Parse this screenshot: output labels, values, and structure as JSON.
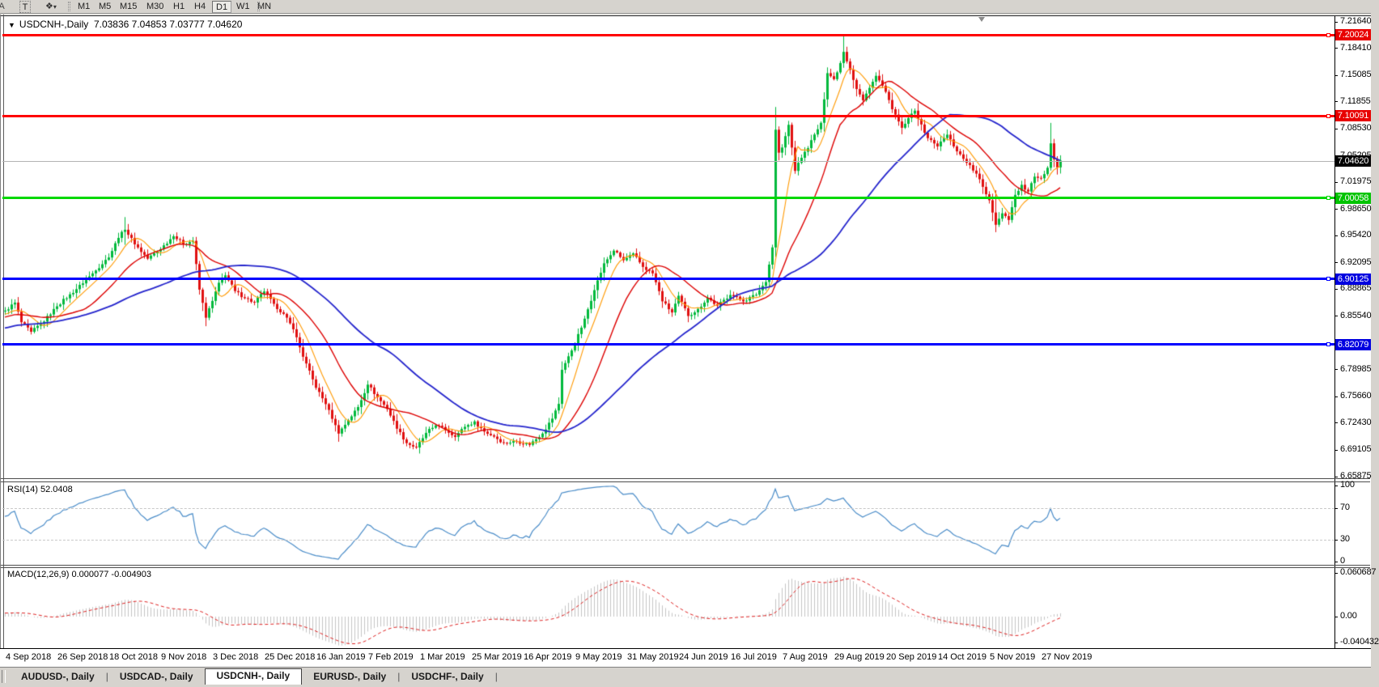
{
  "toolbar": {
    "cropped_icon": "A",
    "text_tool": "T",
    "arrows_tool": "❖",
    "dropdown_caret": "▾",
    "timeframes": [
      "M1",
      "M5",
      "M15",
      "M30",
      "H1",
      "H4",
      "D1",
      "W1",
      "MN"
    ],
    "active_timeframe": "D1"
  },
  "chart": {
    "collapse_triangle": "▼",
    "title": "USDCNH-,Daily",
    "quotes": "7.03836 7.04853 7.03777 7.04620"
  },
  "chart_data": {
    "type": "candlestick",
    "symbol": "USDCNH-",
    "timeframe": "Daily",
    "current_bar": {
      "open": 7.03836,
      "high": 7.04853,
      "low": 7.03777,
      "close": 7.0462
    },
    "price_range": {
      "max": 7.2164,
      "min": 6.65875
    },
    "bars": 327,
    "bull_color": "#00b93c",
    "bear_color": "#e01010",
    "close_keyframes": [
      [
        0,
        6.862
      ],
      [
        3,
        6.872
      ],
      [
        5,
        6.848
      ],
      [
        8,
        6.836
      ],
      [
        11,
        6.846
      ],
      [
        14,
        6.858
      ],
      [
        16,
        6.868
      ],
      [
        20,
        6.882
      ],
      [
        24,
        6.896
      ],
      [
        28,
        6.912
      ],
      [
        32,
        6.928
      ],
      [
        35,
        6.952
      ],
      [
        37,
        6.962
      ],
      [
        40,
        6.944
      ],
      [
        44,
        6.926
      ],
      [
        48,
        6.938
      ],
      [
        52,
        6.954
      ],
      [
        55,
        6.944
      ],
      [
        58,
        6.948
      ],
      [
        60,
        6.888
      ],
      [
        62,
        6.854
      ],
      [
        64,
        6.874
      ],
      [
        66,
        6.896
      ],
      [
        68,
        6.906
      ],
      [
        71,
        6.886
      ],
      [
        74,
        6.878
      ],
      [
        77,
        6.872
      ],
      [
        80,
        6.886
      ],
      [
        83,
        6.87
      ],
      [
        86,
        6.858
      ],
      [
        89,
        6.84
      ],
      [
        92,
        6.806
      ],
      [
        96,
        6.768
      ],
      [
        99,
        6.748
      ],
      [
        101,
        6.73
      ],
      [
        103,
        6.712
      ],
      [
        106,
        6.728
      ],
      [
        109,
        6.744
      ],
      [
        112,
        6.772
      ],
      [
        115,
        6.756
      ],
      [
        118,
        6.742
      ],
      [
        121,
        6.718
      ],
      [
        124,
        6.7
      ],
      [
        127,
        6.694
      ],
      [
        130,
        6.712
      ],
      [
        133,
        6.722
      ],
      [
        136,
        6.716
      ],
      [
        139,
        6.708
      ],
      [
        142,
        6.72
      ],
      [
        145,
        6.726
      ],
      [
        148,
        6.714
      ],
      [
        151,
        6.708
      ],
      [
        154,
        6.7
      ],
      [
        158,
        6.702
      ],
      [
        162,
        6.698
      ],
      [
        166,
        6.712
      ],
      [
        169,
        6.73
      ],
      [
        171,
        6.748
      ],
      [
        172,
        6.79
      ],
      [
        174,
        6.806
      ],
      [
        176,
        6.822
      ],
      [
        179,
        6.852
      ],
      [
        182,
        6.888
      ],
      [
        185,
        6.92
      ],
      [
        188,
        6.936
      ],
      [
        191,
        6.924
      ],
      [
        194,
        6.932
      ],
      [
        197,
        6.916
      ],
      [
        200,
        6.908
      ],
      [
        203,
        6.874
      ],
      [
        206,
        6.86
      ],
      [
        208,
        6.88
      ],
      [
        211,
        6.856
      ],
      [
        214,
        6.864
      ],
      [
        217,
        6.878
      ],
      [
        220,
        6.868
      ],
      [
        224,
        6.882
      ],
      [
        228,
        6.874
      ],
      [
        232,
        6.882
      ],
      [
        235,
        6.898
      ],
      [
        237,
        6.94
      ],
      [
        238,
        7.084
      ],
      [
        239,
        7.056
      ],
      [
        240,
        7.062
      ],
      [
        242,
        7.09
      ],
      [
        244,
        7.034
      ],
      [
        246,
        7.05
      ],
      [
        248,
        7.062
      ],
      [
        250,
        7.078
      ],
      [
        252,
        7.092
      ],
      [
        254,
        7.154
      ],
      [
        256,
        7.146
      ],
      [
        258,
        7.166
      ],
      [
        259,
        7.18
      ],
      [
        261,
        7.158
      ],
      [
        263,
        7.134
      ],
      [
        265,
        7.12
      ],
      [
        267,
        7.136
      ],
      [
        269,
        7.15
      ],
      [
        271,
        7.138
      ],
      [
        273,
        7.12
      ],
      [
        275,
        7.102
      ],
      [
        277,
        7.086
      ],
      [
        279,
        7.098
      ],
      [
        281,
        7.108
      ],
      [
        283,
        7.09
      ],
      [
        285,
        7.074
      ],
      [
        288,
        7.064
      ],
      [
        291,
        7.078
      ],
      [
        294,
        7.058
      ],
      [
        297,
        7.044
      ],
      [
        300,
        7.03
      ],
      [
        302,
        7.014
      ],
      [
        304,
        6.998
      ],
      [
        306,
        6.968
      ],
      [
        308,
        6.982
      ],
      [
        310,
        6.974
      ],
      [
        312,
        7.004
      ],
      [
        314,
        7.016
      ],
      [
        316,
        7.008
      ],
      [
        318,
        7.026
      ],
      [
        320,
        7.024
      ],
      [
        322,
        7.038
      ],
      [
        323,
        7.068
      ],
      [
        324,
        7.048
      ],
      [
        325,
        7.038
      ],
      [
        326,
        7.046
      ]
    ],
    "wick_overrides": [
      [
        37,
        6.977,
        6.943
      ],
      [
        103,
        6.728,
        6.7015
      ],
      [
        238,
        7.112,
        6.928
      ],
      [
        259,
        7.1995,
        7.16
      ],
      [
        306,
        7.01,
        6.9585
      ],
      [
        323,
        7.0925,
        7.034
      ]
    ],
    "moving_averages": [
      {
        "period": 8,
        "color": "#ff9900",
        "width": 1.1
      },
      {
        "period": 21,
        "color": "#dd0000",
        "width": 1.4
      },
      {
        "period": 55,
        "color": "#2424cc",
        "width": 1.8
      }
    ],
    "price_axis_labels": [
      "7.21640",
      "7.18410",
      "7.15085",
      "7.11855",
      "7.08530",
      "7.05205",
      "7.01975",
      "6.98650",
      "6.95420",
      "6.92095",
      "6.88865",
      "6.85540",
      "6.78985",
      "6.75660",
      "6.72430",
      "6.69105",
      "6.65875"
    ],
    "horizontal_levels": [
      {
        "price": 7.20024,
        "label": "7.20024",
        "line_color": "#ff0000",
        "tag_bg": "#e80000",
        "kind": "resistance"
      },
      {
        "price": 7.10091,
        "label": "7.10091",
        "line_color": "#ff0000",
        "tag_bg": "#e80000",
        "kind": "resistance"
      },
      {
        "price": 7.00058,
        "label": "7.00058",
        "line_color": "#00d800",
        "tag_bg": "#00c400",
        "kind": "support"
      },
      {
        "price": 6.90125,
        "label": "6.90125",
        "line_color": "#0000ff",
        "tag_bg": "#0000e0",
        "kind": "support"
      },
      {
        "price": 6.82079,
        "label": "6.82079",
        "line_color": "#0000ff",
        "tag_bg": "#0000e0",
        "kind": "support"
      }
    ],
    "current_price": {
      "value": 7.0462,
      "label": "7.04620",
      "line_color": "#b4b4b4",
      "tag_bg": "#000000"
    },
    "date_labels": [
      "4 Sep 2018",
      "26 Sep 2018",
      "18 Oct 2018",
      "9 Nov 2018",
      "3 Dec 2018",
      "25 Dec 2018",
      "16 Jan 2019",
      "7 Feb 2019",
      "1 Mar 2019",
      "25 Mar 2019",
      "16 Apr 2019",
      "9 May 2019",
      "31 May 2019",
      "24 Jun 2019",
      "16 Jul 2019",
      "7 Aug 2019",
      "29 Aug 2019",
      "20 Sep 2019",
      "14 Oct 2019",
      "5 Nov 2019",
      "27 Nov 2019"
    ]
  },
  "rsi_panel": {
    "label": "RSI(14) 52.0408",
    "period": 14,
    "value": 52.0408,
    "line_color": "#4a8cc8",
    "levels": [
      {
        "v": 100,
        "text": "100"
      },
      {
        "v": 70,
        "text": "70",
        "dashed": true
      },
      {
        "v": 30,
        "text": "30",
        "dashed": true
      },
      {
        "v": 0,
        "text": "0"
      }
    ]
  },
  "macd_panel": {
    "label": "MACD(12,26,9) 0.000077 -0.004903",
    "params": "12,26,9",
    "main_value": 7.7e-05,
    "signal_value": -0.004903,
    "hist_color": "#c4c4c4",
    "signal_color": "#dd2222",
    "axis": [
      {
        "v": 0.060687,
        "text": "0.060687"
      },
      {
        "v": 0,
        "text": "0.00"
      },
      {
        "v": -0.040432,
        "text": "-0.040432"
      }
    ]
  },
  "tabs": [
    {
      "label": "AUDUSD-, Daily",
      "active": false
    },
    {
      "label": "USDCAD-, Daily",
      "active": false
    },
    {
      "label": "USDCNH-, Daily",
      "active": true
    },
    {
      "label": "EURUSD-, Daily",
      "active": false
    },
    {
      "label": "USDCHF-, Daily",
      "active": false
    }
  ]
}
